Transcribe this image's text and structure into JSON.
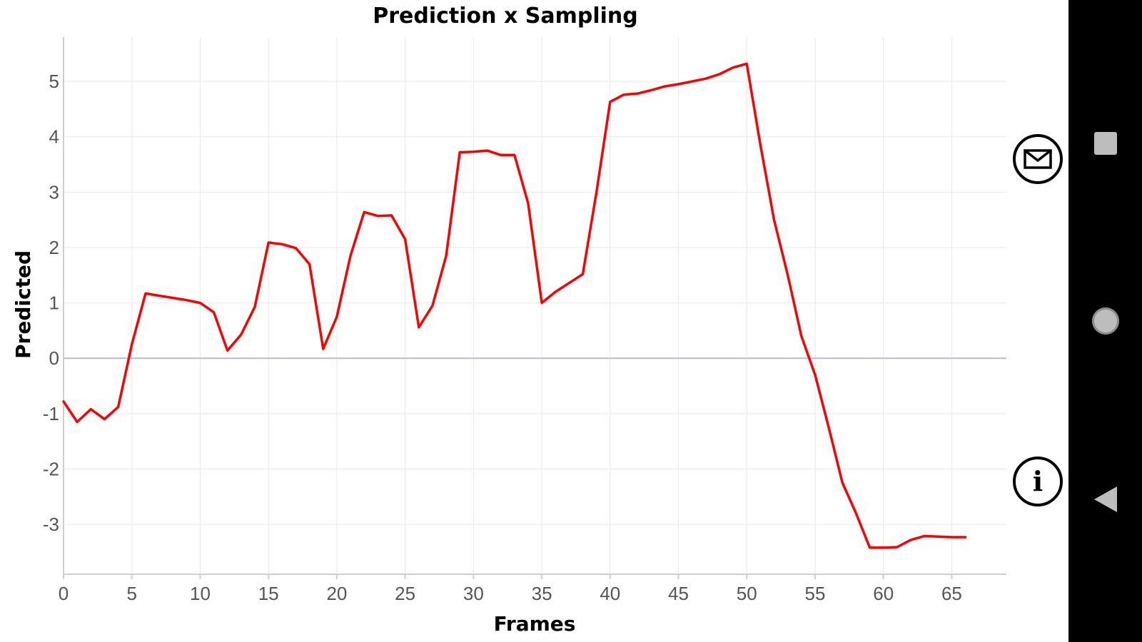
{
  "chart_data": {
    "type": "line",
    "title": "Prediction x Sampling",
    "xlabel": "Frames",
    "ylabel": "Predicted",
    "xlim": [
      0,
      69
    ],
    "ylim": [
      -3.9,
      5.8
    ],
    "x_ticks": [
      0,
      5,
      10,
      15,
      20,
      25,
      30,
      35,
      40,
      45,
      50,
      55,
      60,
      65
    ],
    "y_ticks": [
      -3,
      -2,
      -1,
      0,
      1,
      2,
      3,
      4,
      5
    ],
    "grid": true,
    "zero_line": true,
    "series": [
      {
        "color": "#ff0000",
        "x": [
          0,
          1,
          2,
          3,
          4,
          5,
          6,
          7,
          8,
          9,
          10,
          11,
          12,
          13,
          14,
          15,
          16,
          17,
          18,
          19,
          20,
          21,
          22,
          23,
          24,
          25,
          26,
          27,
          28,
          29,
          30,
          31,
          32,
          33,
          34,
          35,
          36,
          37,
          38,
          39,
          40,
          41,
          42,
          43,
          44,
          45,
          46,
          47,
          48,
          49,
          50,
          51,
          52,
          53,
          54,
          55,
          56,
          57,
          58,
          59,
          60,
          61,
          62,
          63,
          64,
          65,
          66
        ],
        "values": [
          -0.78,
          -1.15,
          -0.92,
          -1.1,
          -0.88,
          0.25,
          1.17,
          1.13,
          1.09,
          1.05,
          1.0,
          0.83,
          0.14,
          0.43,
          0.93,
          2.09,
          2.06,
          1.99,
          1.7,
          0.17,
          0.75,
          1.85,
          2.64,
          2.57,
          2.58,
          2.15,
          0.56,
          0.95,
          1.85,
          3.72,
          3.73,
          3.75,
          3.67,
          3.67,
          2.8,
          1.0,
          1.2,
          1.36,
          1.52,
          3.0,
          4.63,
          4.76,
          4.78,
          4.84,
          4.91,
          4.95,
          5.0,
          5.05,
          5.13,
          5.25,
          5.32,
          3.85,
          2.5,
          1.5,
          0.4,
          -0.3,
          -1.25,
          -2.25,
          -2.8,
          -3.42,
          -3.42,
          -3.41,
          -3.28,
          -3.21,
          -3.22,
          -3.23,
          -3.23
        ]
      }
    ]
  },
  "actions": {
    "email_icon": "envelope-icon",
    "info_icon": "info-icon",
    "info_glyph": "i"
  },
  "navigation": {
    "recents_icon": "square-icon",
    "home_icon": "circle-icon",
    "back_icon": "triangle-back-icon"
  }
}
